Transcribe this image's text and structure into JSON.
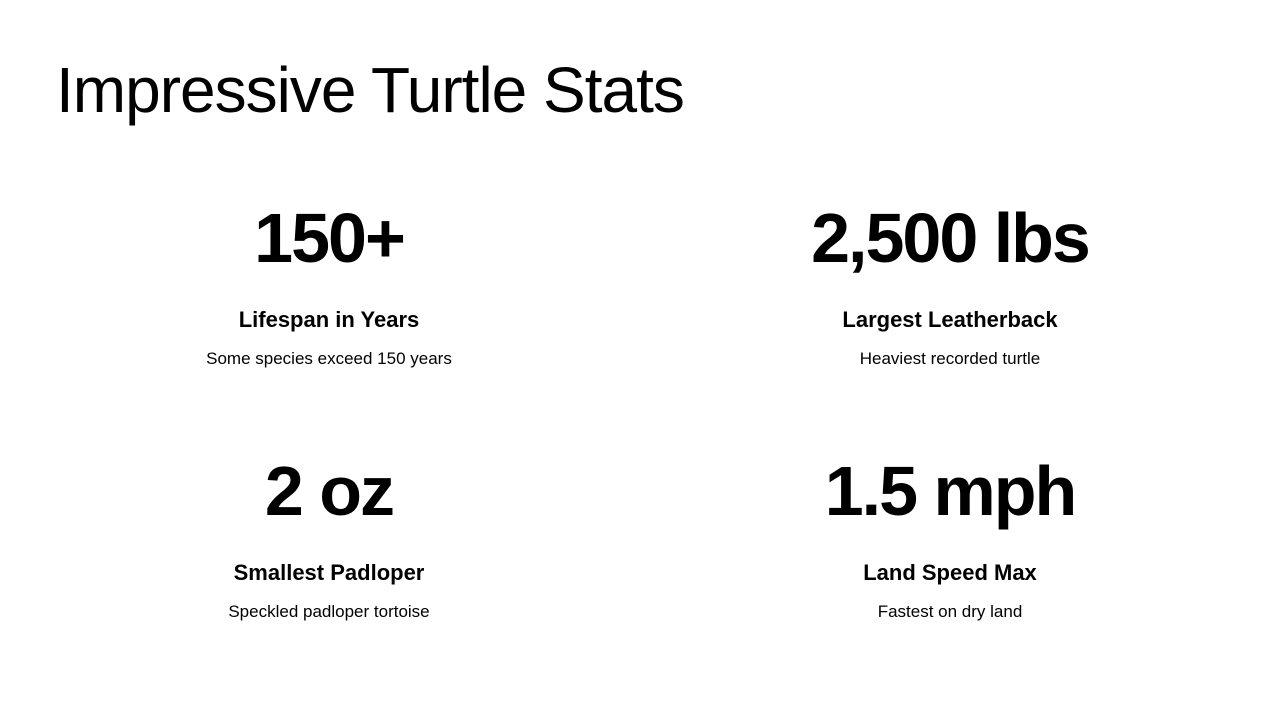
{
  "slide": {
    "title": "Impressive Turtle Stats",
    "stats": [
      {
        "value": "150+",
        "label": "Lifespan in Years",
        "description": "Some species exceed 150 years"
      },
      {
        "value": "2,500 lbs",
        "label": "Largest Leatherback",
        "description": "Heaviest recorded turtle"
      },
      {
        "value": "2 oz",
        "label": "Smallest Padloper",
        "description": "Speckled padloper tortoise"
      },
      {
        "value": "1.5 mph",
        "label": "Land Speed Max",
        "description": "Fastest on dry land"
      }
    ]
  }
}
